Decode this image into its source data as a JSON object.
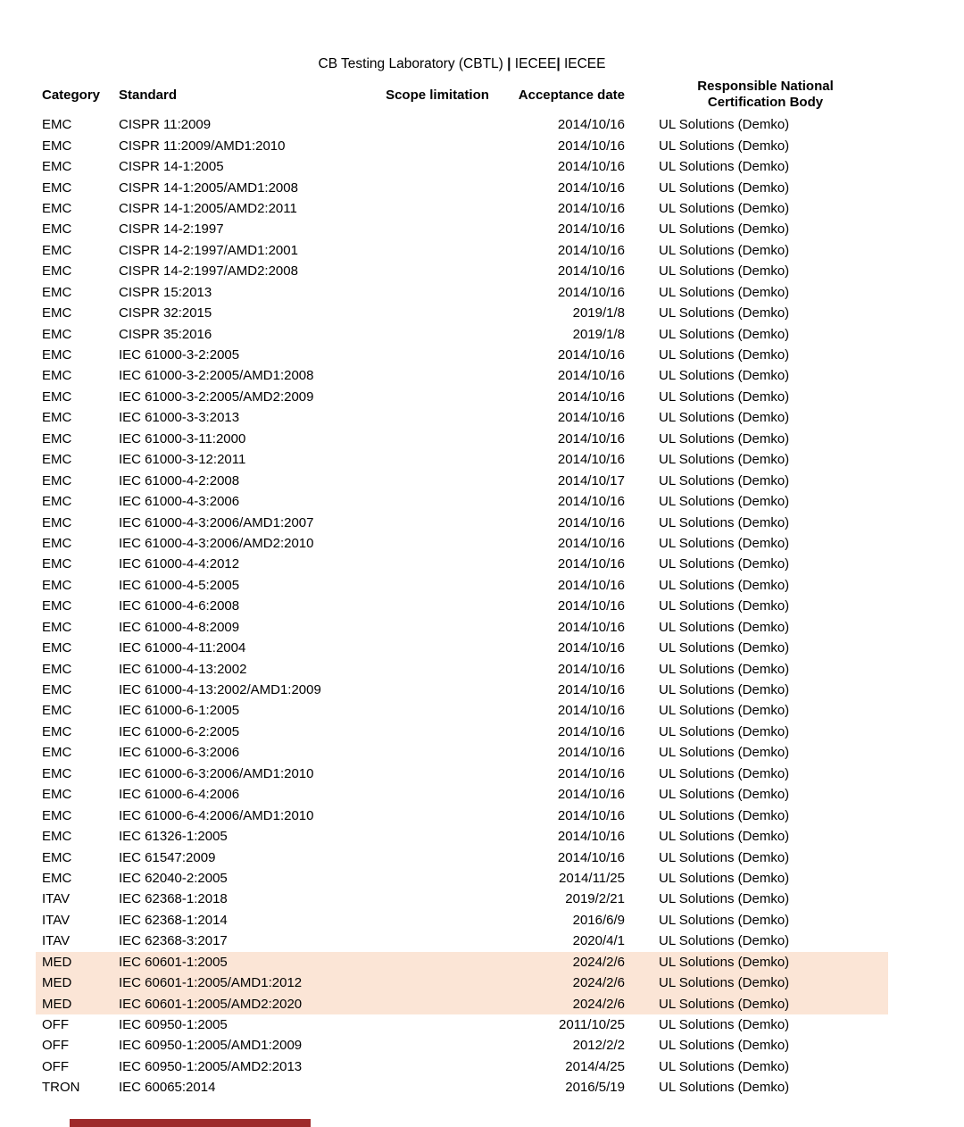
{
  "colors": {
    "highlight": "#FBE5D6",
    "section_bar": "#9E2A2B"
  },
  "header": {
    "title_parts": [
      {
        "text": "CB Testing Laboratory (CBTL) ",
        "bold": false
      },
      {
        "text": "| ",
        "bold": true
      },
      {
        "text": "IECEE",
        "bold": false
      },
      {
        "text": "| ",
        "bold": true
      },
      {
        "text": "IECEE",
        "bold": false
      }
    ]
  },
  "table": {
    "columns": {
      "category": "Category",
      "standard": "Standard",
      "scope_limitation": "Scope limitation",
      "acceptance_date": "Acceptance date",
      "rncb_line1": "Responsible National",
      "rncb_line2": "Certification Body"
    },
    "rows": [
      {
        "category": "EMC",
        "standard": "CISPR 11:2009",
        "scope": "",
        "date": "2014/10/16",
        "body": "UL Solutions (Demko)",
        "highlighted": false
      },
      {
        "category": "EMC",
        "standard": "CISPR 11:2009/AMD1:2010",
        "scope": "",
        "date": "2014/10/16",
        "body": "UL Solutions (Demko)",
        "highlighted": false
      },
      {
        "category": "EMC",
        "standard": "CISPR 14-1:2005",
        "scope": "",
        "date": "2014/10/16",
        "body": "UL Solutions (Demko)",
        "highlighted": false
      },
      {
        "category": "EMC",
        "standard": "CISPR 14-1:2005/AMD1:2008",
        "scope": "",
        "date": "2014/10/16",
        "body": "UL Solutions (Demko)",
        "highlighted": false
      },
      {
        "category": "EMC",
        "standard": "CISPR 14-1:2005/AMD2:2011",
        "scope": "",
        "date": "2014/10/16",
        "body": "UL Solutions (Demko)",
        "highlighted": false
      },
      {
        "category": "EMC",
        "standard": "CISPR 14-2:1997",
        "scope": "",
        "date": "2014/10/16",
        "body": "UL Solutions (Demko)",
        "highlighted": false
      },
      {
        "category": "EMC",
        "standard": "CISPR 14-2:1997/AMD1:2001",
        "scope": "",
        "date": "2014/10/16",
        "body": "UL Solutions (Demko)",
        "highlighted": false
      },
      {
        "category": "EMC",
        "standard": "CISPR 14-2:1997/AMD2:2008",
        "scope": "",
        "date": "2014/10/16",
        "body": "UL Solutions (Demko)",
        "highlighted": false
      },
      {
        "category": "EMC",
        "standard": "CISPR 15:2013",
        "scope": "",
        "date": "2014/10/16",
        "body": "UL Solutions (Demko)",
        "highlighted": false
      },
      {
        "category": "EMC",
        "standard": "CISPR 32:2015",
        "scope": "",
        "date": "2019/1/8",
        "body": "UL Solutions (Demko)",
        "highlighted": false
      },
      {
        "category": "EMC",
        "standard": "CISPR 35:2016",
        "scope": "",
        "date": "2019/1/8",
        "body": "UL Solutions (Demko)",
        "highlighted": false
      },
      {
        "category": "EMC",
        "standard": "IEC 61000-3-2:2005",
        "scope": "",
        "date": "2014/10/16",
        "body": "UL Solutions (Demko)",
        "highlighted": false
      },
      {
        "category": "EMC",
        "standard": "IEC 61000-3-2:2005/AMD1:2008",
        "scope": "",
        "date": "2014/10/16",
        "body": "UL Solutions (Demko)",
        "highlighted": false
      },
      {
        "category": "EMC",
        "standard": "IEC 61000-3-2:2005/AMD2:2009",
        "scope": "",
        "date": "2014/10/16",
        "body": "UL Solutions (Demko)",
        "highlighted": false
      },
      {
        "category": "EMC",
        "standard": "IEC 61000-3-3:2013",
        "scope": "",
        "date": "2014/10/16",
        "body": "UL Solutions (Demko)",
        "highlighted": false
      },
      {
        "category": "EMC",
        "standard": "IEC 61000-3-11:2000",
        "scope": "",
        "date": "2014/10/16",
        "body": "UL Solutions (Demko)",
        "highlighted": false
      },
      {
        "category": "EMC",
        "standard": "IEC 61000-3-12:2011",
        "scope": "",
        "date": "2014/10/16",
        "body": "UL Solutions (Demko)",
        "highlighted": false
      },
      {
        "category": "EMC",
        "standard": "IEC 61000-4-2:2008",
        "scope": "",
        "date": "2014/10/17",
        "body": "UL Solutions (Demko)",
        "highlighted": false
      },
      {
        "category": "EMC",
        "standard": "IEC 61000-4-3:2006",
        "scope": "",
        "date": "2014/10/16",
        "body": "UL Solutions (Demko)",
        "highlighted": false
      },
      {
        "category": "EMC",
        "standard": "IEC 61000-4-3:2006/AMD1:2007",
        "scope": "",
        "date": "2014/10/16",
        "body": "UL Solutions (Demko)",
        "highlighted": false
      },
      {
        "category": "EMC",
        "standard": "IEC 61000-4-3:2006/AMD2:2010",
        "scope": "",
        "date": "2014/10/16",
        "body": "UL Solutions (Demko)",
        "highlighted": false
      },
      {
        "category": "EMC",
        "standard": "IEC 61000-4-4:2012",
        "scope": "",
        "date": "2014/10/16",
        "body": "UL Solutions (Demko)",
        "highlighted": false
      },
      {
        "category": "EMC",
        "standard": "IEC 61000-4-5:2005",
        "scope": "",
        "date": "2014/10/16",
        "body": "UL Solutions (Demko)",
        "highlighted": false
      },
      {
        "category": "EMC",
        "standard": "IEC 61000-4-6:2008",
        "scope": "",
        "date": "2014/10/16",
        "body": "UL Solutions (Demko)",
        "highlighted": false
      },
      {
        "category": "EMC",
        "standard": "IEC 61000-4-8:2009",
        "scope": "",
        "date": "2014/10/16",
        "body": "UL Solutions (Demko)",
        "highlighted": false
      },
      {
        "category": "EMC",
        "standard": "IEC 61000-4-11:2004",
        "scope": "",
        "date": "2014/10/16",
        "body": "UL Solutions (Demko)",
        "highlighted": false
      },
      {
        "category": "EMC",
        "standard": "IEC 61000-4-13:2002",
        "scope": "",
        "date": "2014/10/16",
        "body": "UL Solutions (Demko)",
        "highlighted": false
      },
      {
        "category": "EMC",
        "standard": "IEC 61000-4-13:2002/AMD1:2009",
        "scope": "",
        "date": "2014/10/16",
        "body": "UL Solutions (Demko)",
        "highlighted": false
      },
      {
        "category": "EMC",
        "standard": "IEC 61000-6-1:2005",
        "scope": "",
        "date": "2014/10/16",
        "body": "UL Solutions (Demko)",
        "highlighted": false
      },
      {
        "category": "EMC",
        "standard": "IEC 61000-6-2:2005",
        "scope": "",
        "date": "2014/10/16",
        "body": "UL Solutions (Demko)",
        "highlighted": false
      },
      {
        "category": "EMC",
        "standard": "IEC 61000-6-3:2006",
        "scope": "",
        "date": "2014/10/16",
        "body": "UL Solutions (Demko)",
        "highlighted": false
      },
      {
        "category": "EMC",
        "standard": "IEC 61000-6-3:2006/AMD1:2010",
        "scope": "",
        "date": "2014/10/16",
        "body": "UL Solutions (Demko)",
        "highlighted": false
      },
      {
        "category": "EMC",
        "standard": "IEC 61000-6-4:2006",
        "scope": "",
        "date": "2014/10/16",
        "body": "UL Solutions (Demko)",
        "highlighted": false
      },
      {
        "category": "EMC",
        "standard": "IEC 61000-6-4:2006/AMD1:2010",
        "scope": "",
        "date": "2014/10/16",
        "body": "UL Solutions (Demko)",
        "highlighted": false
      },
      {
        "category": "EMC",
        "standard": "IEC 61326-1:2005",
        "scope": "",
        "date": "2014/10/16",
        "body": "UL Solutions (Demko)",
        "highlighted": false
      },
      {
        "category": "EMC",
        "standard": "IEC 61547:2009",
        "scope": "",
        "date": "2014/10/16",
        "body": "UL Solutions (Demko)",
        "highlighted": false
      },
      {
        "category": "EMC",
        "standard": "IEC 62040-2:2005",
        "scope": "",
        "date": "2014/11/25",
        "body": "UL Solutions (Demko)",
        "highlighted": false
      },
      {
        "category": "ITAV",
        "standard": "IEC 62368-1:2018",
        "scope": "",
        "date": "2019/2/21",
        "body": "UL Solutions (Demko)",
        "highlighted": false
      },
      {
        "category": "ITAV",
        "standard": "IEC 62368-1:2014",
        "scope": "",
        "date": "2016/6/9",
        "body": "UL Solutions (Demko)",
        "highlighted": false
      },
      {
        "category": "ITAV",
        "standard": "IEC 62368-3:2017",
        "scope": "",
        "date": "2020/4/1",
        "body": "UL Solutions (Demko)",
        "highlighted": false
      },
      {
        "category": "MED",
        "standard": "IEC 60601-1:2005",
        "scope": "",
        "date": "2024/2/6",
        "body": "UL Solutions (Demko)",
        "highlighted": true
      },
      {
        "category": "MED",
        "standard": "IEC 60601-1:2005/AMD1:2012",
        "scope": "",
        "date": "2024/2/6",
        "body": "UL Solutions (Demko)",
        "highlighted": true
      },
      {
        "category": "MED",
        "standard": "IEC 60601-1:2005/AMD2:2020",
        "scope": "",
        "date": "2024/2/6",
        "body": "UL Solutions (Demko)",
        "highlighted": true
      },
      {
        "category": "OFF",
        "standard": "IEC 60950-1:2005",
        "scope": "",
        "date": "2011/10/25",
        "body": "UL Solutions (Demko)",
        "highlighted": false
      },
      {
        "category": "OFF",
        "standard": "IEC 60950-1:2005/AMD1:2009",
        "scope": "",
        "date": "2012/2/2",
        "body": "UL Solutions (Demko)",
        "highlighted": false
      },
      {
        "category": "OFF",
        "standard": "IEC 60950-1:2005/AMD2:2013",
        "scope": "",
        "date": "2014/4/25",
        "body": "UL Solutions (Demko)",
        "highlighted": false
      },
      {
        "category": "TRON",
        "standard": "IEC 60065:2014",
        "scope": "",
        "date": "2016/5/19",
        "body": "UL Solutions (Demko)",
        "highlighted": false
      }
    ]
  }
}
